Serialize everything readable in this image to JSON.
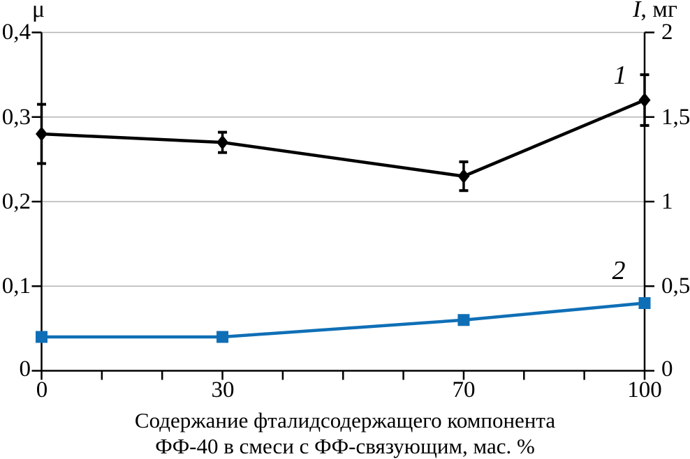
{
  "figure": {
    "kind": "dual-axis line chart"
  },
  "chart_data": {
    "type": "line",
    "title": "",
    "x": [
      0,
      30,
      70,
      100
    ],
    "series": [
      {
        "label": "1",
        "axis": "left",
        "color": "#000000",
        "marker": "diamond",
        "values": [
          0.28,
          0.27,
          0.23,
          0.32
        ],
        "errors": [
          0.035,
          0.012,
          0.017,
          0.03
        ]
      },
      {
        "label": "2",
        "axis": "right",
        "color": "#0f6fb6",
        "marker": "square",
        "values": [
          0.2,
          0.2,
          0.3,
          0.4
        ],
        "errors": [
          0,
          0,
          0,
          0
        ]
      }
    ],
    "axes": {
      "left": {
        "title": "μ",
        "range": [
          0,
          0.4
        ],
        "ticks": [
          {
            "v": 0,
            "label": "0"
          },
          {
            "v": 0.1,
            "label": "0,1"
          },
          {
            "v": 0.2,
            "label": "0,2"
          },
          {
            "v": 0.3,
            "label": "0,3"
          },
          {
            "v": 0.4,
            "label": "0,4"
          }
        ]
      },
      "right": {
        "title_var": "I",
        "title_unit": ", мг",
        "range": [
          0,
          2
        ],
        "ticks": [
          {
            "v": 0,
            "label": "0"
          },
          {
            "v": 0.5,
            "label": "0,5"
          },
          {
            "v": 1,
            "label": "1"
          },
          {
            "v": 1.5,
            "label": "1,5"
          },
          {
            "v": 2,
            "label": "2"
          }
        ]
      },
      "x": {
        "range": [
          0,
          100
        ],
        "minor_step": 10,
        "ticks": [
          {
            "v": 0,
            "label": "0"
          },
          {
            "v": 30,
            "label": "30"
          },
          {
            "v": 70,
            "label": "70"
          },
          {
            "v": 100,
            "label": "100"
          }
        ]
      }
    },
    "grid": {
      "on": true,
      "color": "#b3b3b3",
      "levels_left": [
        0.1,
        0.2,
        0.3,
        0.4
      ]
    },
    "axis_color": "#000000",
    "xlabel_line1": "Содержание фталидсодержащего компонента",
    "xlabel_line2": "ФФ-40 в смеси с ФФ-связующим, мас. %"
  }
}
